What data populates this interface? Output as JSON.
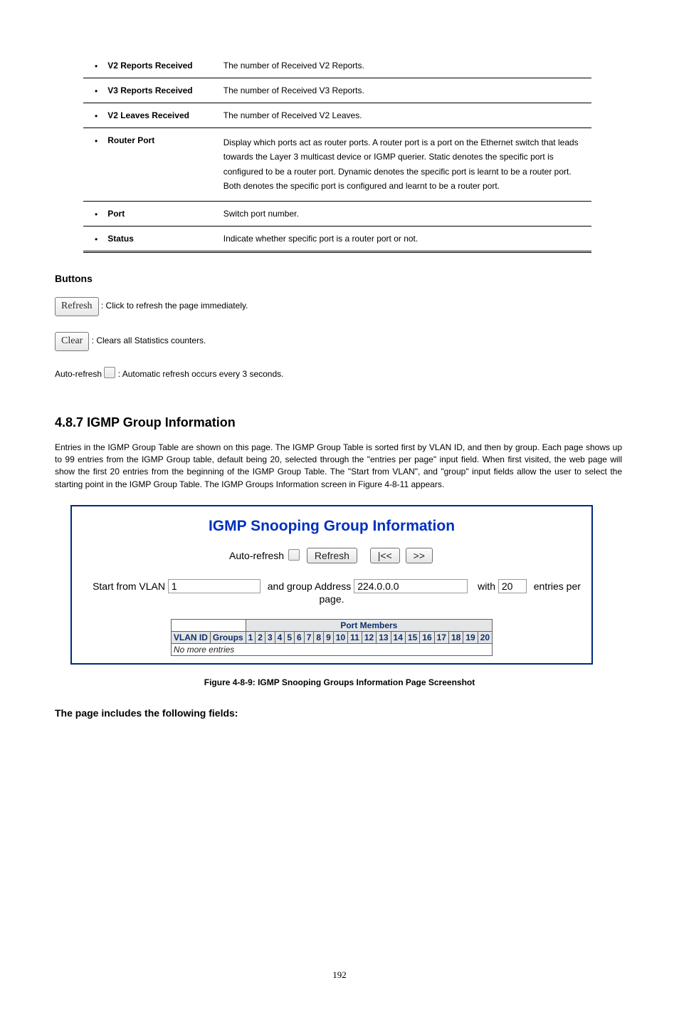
{
  "table_rows": [
    {
      "label": "V2 Reports Received",
      "desc": "The number of Received V2 Reports."
    },
    {
      "label": "V3 Reports Received",
      "desc": "The number of Received V3 Reports."
    },
    {
      "label": "V2 Leaves Received",
      "desc": "The number of Received V2 Leaves."
    },
    {
      "label": "Router Port",
      "desc": "Display which ports act as router ports. A router port is a port on the Ethernet switch that leads towards the Layer 3 multicast device or IGMP querier. Static denotes the specific port is configured to be a router port. Dynamic denotes the specific port is learnt to be a router port. Both denotes the specific port is configured and learnt to be a router port."
    },
    {
      "label": "Port",
      "desc": "Switch port number."
    },
    {
      "label": "Status",
      "desc": "Indicate whether specific port is a router port or not."
    }
  ],
  "buttons_heading": "Buttons",
  "refresh_btn_label": "Refresh",
  "clear_btn_label": "Clear",
  "refresh_desc": ": Click to refresh the page immediately.",
  "clear_desc": ": Clears all Statistics counters.",
  "auto_refresh_label": "Auto-refresh ",
  "auto_refresh_desc": ": Automatic refresh occurs every 3 seconds.",
  "section_number": "4.8.7",
  "section_title": "IGMP Group Information",
  "intro": "Entries in the IGMP Group Table are shown on this page. The IGMP Group Table is sorted first by VLAN ID, and then by group. Each page shows up to 99 entries from the IGMP Group table, default being 20, selected through the \"entries per page\" input field. When first visited, the web page will show the first 20 entries from the beginning of the IGMP Group Table. The \"Start from VLAN\", and \"group\" input fields allow the user to select the starting point in the IGMP Group Table. The IGMP Groups Information screen in Figure 4-8-11 appears.",
  "screenshot": {
    "title": "IGMP Snooping Group Information",
    "auto_refresh_label": "Auto-refresh",
    "refresh_label": "Refresh",
    "prev_label": "|<<",
    "next_label": ">>",
    "start_vlan_label": "Start from VLAN",
    "vlan_value": "1",
    "group_label": "and group Address",
    "group_value": "224.0.0.0",
    "with_label": "with",
    "entries_value": "20",
    "per_page_label": "entries per page.",
    "port_members_label": "Port Members",
    "col_vlan": "VLAN ID",
    "col_groups": "Groups",
    "ports": [
      "1",
      "2",
      "3",
      "4",
      "5",
      "6",
      "7",
      "8",
      "9",
      "10",
      "11",
      "12",
      "13",
      "14",
      "15",
      "16",
      "17",
      "18",
      "19",
      "20"
    ],
    "no_more": "No more entries"
  },
  "figure_caption": "Figure 4-8-9: IGMP Snooping Groups Information Page Screenshot",
  "objects_heading": "The page includes the following fields:",
  "page_number": "192"
}
